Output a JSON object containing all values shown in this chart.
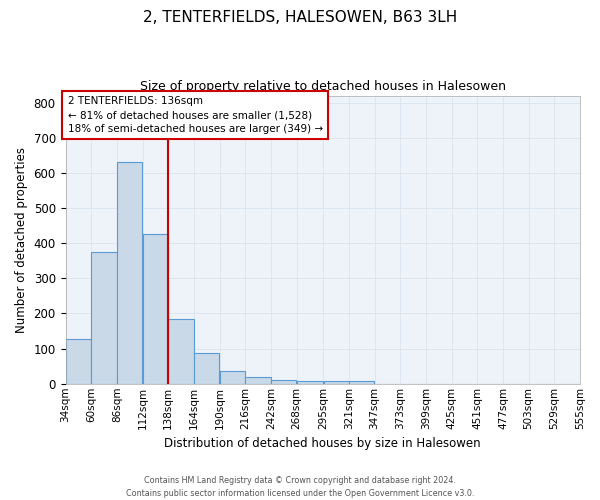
{
  "title": "2, TENTERFIELDS, HALESOWEN, B63 3LH",
  "subtitle": "Size of property relative to detached houses in Halesowen",
  "xlabel": "Distribution of detached houses by size in Halesowen",
  "ylabel": "Number of detached properties",
  "bar_left_edges": [
    34,
    60,
    86,
    112,
    138,
    164,
    190,
    216,
    242,
    268,
    295,
    321,
    347,
    373,
    399,
    425,
    451,
    477,
    503,
    529
  ],
  "bar_widths": [
    26,
    26,
    26,
    26,
    26,
    26,
    26,
    26,
    26,
    27,
    26,
    26,
    26,
    26,
    26,
    26,
    26,
    26,
    26,
    26
  ],
  "bar_heights": [
    128,
    375,
    632,
    427,
    185,
    87,
    35,
    18,
    10,
    8,
    8,
    8,
    0,
    0,
    0,
    0,
    0,
    0,
    0,
    0
  ],
  "bar_facecolor": "#c9d9e8",
  "bar_edgecolor": "#5b9bd5",
  "redline_x": 138,
  "annotation_text": "2 TENTERFIELDS: 136sqm\n← 81% of detached houses are smaller (1,528)\n18% of semi-detached houses are larger (349) →",
  "annotation_box_color": "#cc0000",
  "xlim": [
    34,
    555
  ],
  "ylim": [
    0,
    820
  ],
  "yticks": [
    0,
    100,
    200,
    300,
    400,
    500,
    600,
    700,
    800
  ],
  "xtick_labels": [
    "34sqm",
    "60sqm",
    "86sqm",
    "112sqm",
    "138sqm",
    "164sqm",
    "190sqm",
    "216sqm",
    "242sqm",
    "268sqm",
    "295sqm",
    "321sqm",
    "347sqm",
    "373sqm",
    "399sqm",
    "425sqm",
    "451sqm",
    "477sqm",
    "503sqm",
    "529sqm",
    "555sqm"
  ],
  "xtick_positions": [
    34,
    60,
    86,
    112,
    138,
    164,
    190,
    216,
    242,
    268,
    295,
    321,
    347,
    373,
    399,
    425,
    451,
    477,
    503,
    529,
    555
  ],
  "grid_color": "#dce6f0",
  "bg_color": "#eef3f9",
  "footer_line1": "Contains HM Land Registry data © Crown copyright and database right 2024.",
  "footer_line2": "Contains public sector information licensed under the Open Government Licence v3.0."
}
